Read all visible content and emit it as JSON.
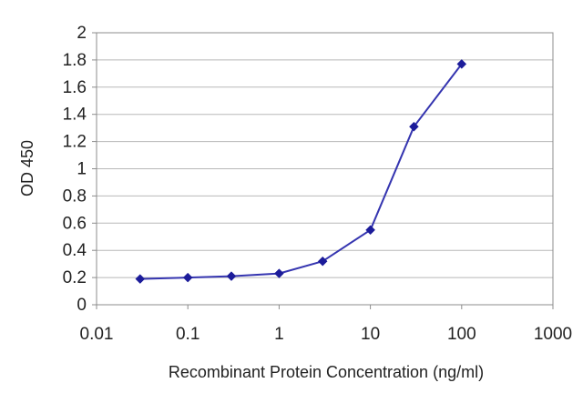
{
  "chart_data": {
    "type": "line",
    "xlabel": "Recombinant Protein Concentration (ng/ml)",
    "ylabel": "OD 450",
    "x_scale": "log",
    "xlim": [
      0.01,
      1000
    ],
    "ylim": [
      0,
      2
    ],
    "grid": "horizontal",
    "x_ticks": [
      "0.01",
      "0.1",
      "1",
      "10",
      "100",
      "1000"
    ],
    "y_ticks": [
      "0",
      "0.2",
      "0.4",
      "0.6",
      "0.8",
      "1",
      "1.2",
      "1.4",
      "1.6",
      "1.8",
      "2"
    ],
    "series": [
      {
        "x": [
          0.03,
          0.1,
          0.3,
          1,
          3,
          10,
          30,
          100
        ],
        "y": [
          0.19,
          0.2,
          0.21,
          0.23,
          0.32,
          0.55,
          1.31,
          1.77
        ]
      }
    ],
    "colors": {
      "line": "#3535b0",
      "marker": "#1c1c9a",
      "grid": "#b8b8b8",
      "frame": "#8c8c8c"
    }
  }
}
